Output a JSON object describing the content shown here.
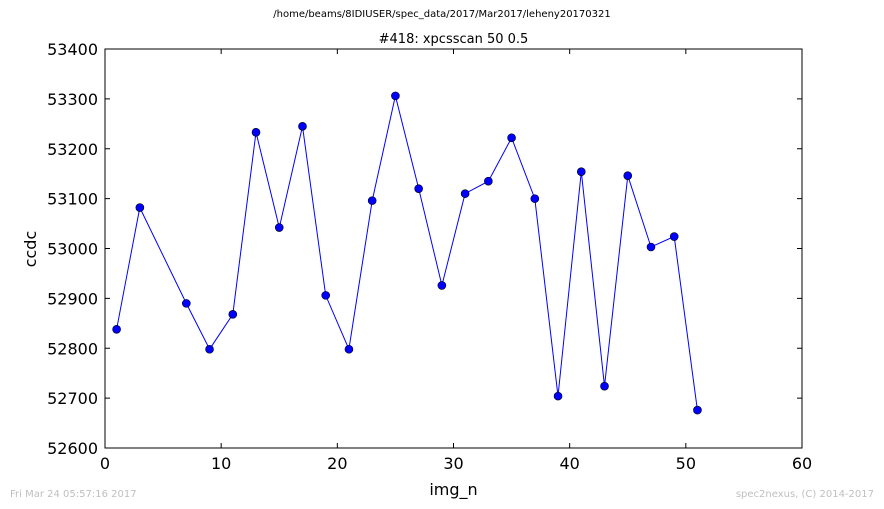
{
  "suptitle": "/home/beams/8IDIUSER/spec_data/2017/Mar2017/leheny20170321",
  "footer": {
    "timestamp": "Fri Mar 24 05:57:16 2017",
    "credit": "spec2nexus, (C) 2014-2017"
  },
  "chart_data": {
    "type": "line",
    "title": "#418: xpcsscan 50 0.5",
    "xlabel": "img_n",
    "ylabel": "ccdc",
    "xlim": [
      0,
      60
    ],
    "ylim": [
      52600,
      53400
    ],
    "xticks": [
      0,
      10,
      20,
      30,
      40,
      50,
      60
    ],
    "yticks": [
      52600,
      52700,
      52800,
      52900,
      53000,
      53100,
      53200,
      53300,
      53400
    ],
    "grid": false,
    "legend": "none",
    "color": "#0000ff",
    "series": [
      {
        "x": [
          1,
          3,
          7,
          9,
          11,
          13,
          15,
          17,
          19,
          21,
          23,
          25,
          27,
          29,
          31,
          33,
          35,
          37,
          39,
          41,
          43,
          45,
          47,
          49,
          51
        ],
        "y": [
          52838,
          53082,
          52890,
          52798,
          52868,
          53233,
          53042,
          53245,
          52906,
          52798,
          53096,
          53306,
          53120,
          52926,
          53110,
          53135,
          53222,
          53100,
          52704,
          53154,
          52724,
          53146,
          53003,
          53024,
          52676
        ]
      }
    ]
  }
}
